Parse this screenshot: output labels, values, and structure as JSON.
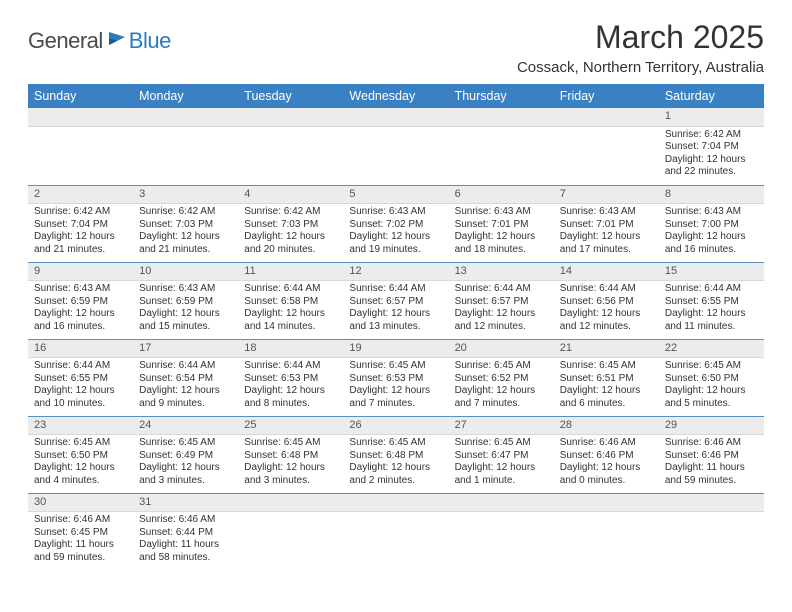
{
  "logo": {
    "general": "General",
    "blue": "Blue"
  },
  "title": "March 2025",
  "location": "Cossack, Northern Territory, Australia",
  "dayHeaders": [
    "Sunday",
    "Monday",
    "Tuesday",
    "Wednesday",
    "Thursday",
    "Friday",
    "Saturday"
  ],
  "colors": {
    "headerBg": "#3a81c4",
    "headerText": "#ffffff",
    "dayNumBg": "#ececec",
    "rowBorder": "#5a8fc2",
    "logoBlue": "#2b7bbd",
    "textDark": "#333333"
  },
  "weeks": [
    [
      {
        "n": "",
        "sunrise": "",
        "sunset": "",
        "daylight": ""
      },
      {
        "n": "",
        "sunrise": "",
        "sunset": "",
        "daylight": ""
      },
      {
        "n": "",
        "sunrise": "",
        "sunset": "",
        "daylight": ""
      },
      {
        "n": "",
        "sunrise": "",
        "sunset": "",
        "daylight": ""
      },
      {
        "n": "",
        "sunrise": "",
        "sunset": "",
        "daylight": ""
      },
      {
        "n": "",
        "sunrise": "",
        "sunset": "",
        "daylight": ""
      },
      {
        "n": "1",
        "sunrise": "Sunrise: 6:42 AM",
        "sunset": "Sunset: 7:04 PM",
        "daylight": "Daylight: 12 hours and 22 minutes."
      }
    ],
    [
      {
        "n": "2",
        "sunrise": "Sunrise: 6:42 AM",
        "sunset": "Sunset: 7:04 PM",
        "daylight": "Daylight: 12 hours and 21 minutes."
      },
      {
        "n": "3",
        "sunrise": "Sunrise: 6:42 AM",
        "sunset": "Sunset: 7:03 PM",
        "daylight": "Daylight: 12 hours and 21 minutes."
      },
      {
        "n": "4",
        "sunrise": "Sunrise: 6:42 AM",
        "sunset": "Sunset: 7:03 PM",
        "daylight": "Daylight: 12 hours and 20 minutes."
      },
      {
        "n": "5",
        "sunrise": "Sunrise: 6:43 AM",
        "sunset": "Sunset: 7:02 PM",
        "daylight": "Daylight: 12 hours and 19 minutes."
      },
      {
        "n": "6",
        "sunrise": "Sunrise: 6:43 AM",
        "sunset": "Sunset: 7:01 PM",
        "daylight": "Daylight: 12 hours and 18 minutes."
      },
      {
        "n": "7",
        "sunrise": "Sunrise: 6:43 AM",
        "sunset": "Sunset: 7:01 PM",
        "daylight": "Daylight: 12 hours and 17 minutes."
      },
      {
        "n": "8",
        "sunrise": "Sunrise: 6:43 AM",
        "sunset": "Sunset: 7:00 PM",
        "daylight": "Daylight: 12 hours and 16 minutes."
      }
    ],
    [
      {
        "n": "9",
        "sunrise": "Sunrise: 6:43 AM",
        "sunset": "Sunset: 6:59 PM",
        "daylight": "Daylight: 12 hours and 16 minutes."
      },
      {
        "n": "10",
        "sunrise": "Sunrise: 6:43 AM",
        "sunset": "Sunset: 6:59 PM",
        "daylight": "Daylight: 12 hours and 15 minutes."
      },
      {
        "n": "11",
        "sunrise": "Sunrise: 6:44 AM",
        "sunset": "Sunset: 6:58 PM",
        "daylight": "Daylight: 12 hours and 14 minutes."
      },
      {
        "n": "12",
        "sunrise": "Sunrise: 6:44 AM",
        "sunset": "Sunset: 6:57 PM",
        "daylight": "Daylight: 12 hours and 13 minutes."
      },
      {
        "n": "13",
        "sunrise": "Sunrise: 6:44 AM",
        "sunset": "Sunset: 6:57 PM",
        "daylight": "Daylight: 12 hours and 12 minutes."
      },
      {
        "n": "14",
        "sunrise": "Sunrise: 6:44 AM",
        "sunset": "Sunset: 6:56 PM",
        "daylight": "Daylight: 12 hours and 12 minutes."
      },
      {
        "n": "15",
        "sunrise": "Sunrise: 6:44 AM",
        "sunset": "Sunset: 6:55 PM",
        "daylight": "Daylight: 12 hours and 11 minutes."
      }
    ],
    [
      {
        "n": "16",
        "sunrise": "Sunrise: 6:44 AM",
        "sunset": "Sunset: 6:55 PM",
        "daylight": "Daylight: 12 hours and 10 minutes."
      },
      {
        "n": "17",
        "sunrise": "Sunrise: 6:44 AM",
        "sunset": "Sunset: 6:54 PM",
        "daylight": "Daylight: 12 hours and 9 minutes."
      },
      {
        "n": "18",
        "sunrise": "Sunrise: 6:44 AM",
        "sunset": "Sunset: 6:53 PM",
        "daylight": "Daylight: 12 hours and 8 minutes."
      },
      {
        "n": "19",
        "sunrise": "Sunrise: 6:45 AM",
        "sunset": "Sunset: 6:53 PM",
        "daylight": "Daylight: 12 hours and 7 minutes."
      },
      {
        "n": "20",
        "sunrise": "Sunrise: 6:45 AM",
        "sunset": "Sunset: 6:52 PM",
        "daylight": "Daylight: 12 hours and 7 minutes."
      },
      {
        "n": "21",
        "sunrise": "Sunrise: 6:45 AM",
        "sunset": "Sunset: 6:51 PM",
        "daylight": "Daylight: 12 hours and 6 minutes."
      },
      {
        "n": "22",
        "sunrise": "Sunrise: 6:45 AM",
        "sunset": "Sunset: 6:50 PM",
        "daylight": "Daylight: 12 hours and 5 minutes."
      }
    ],
    [
      {
        "n": "23",
        "sunrise": "Sunrise: 6:45 AM",
        "sunset": "Sunset: 6:50 PM",
        "daylight": "Daylight: 12 hours and 4 minutes."
      },
      {
        "n": "24",
        "sunrise": "Sunrise: 6:45 AM",
        "sunset": "Sunset: 6:49 PM",
        "daylight": "Daylight: 12 hours and 3 minutes."
      },
      {
        "n": "25",
        "sunrise": "Sunrise: 6:45 AM",
        "sunset": "Sunset: 6:48 PM",
        "daylight": "Daylight: 12 hours and 3 minutes."
      },
      {
        "n": "26",
        "sunrise": "Sunrise: 6:45 AM",
        "sunset": "Sunset: 6:48 PM",
        "daylight": "Daylight: 12 hours and 2 minutes."
      },
      {
        "n": "27",
        "sunrise": "Sunrise: 6:45 AM",
        "sunset": "Sunset: 6:47 PM",
        "daylight": "Daylight: 12 hours and 1 minute."
      },
      {
        "n": "28",
        "sunrise": "Sunrise: 6:46 AM",
        "sunset": "Sunset: 6:46 PM",
        "daylight": "Daylight: 12 hours and 0 minutes."
      },
      {
        "n": "29",
        "sunrise": "Sunrise: 6:46 AM",
        "sunset": "Sunset: 6:46 PM",
        "daylight": "Daylight: 11 hours and 59 minutes."
      }
    ],
    [
      {
        "n": "30",
        "sunrise": "Sunrise: 6:46 AM",
        "sunset": "Sunset: 6:45 PM",
        "daylight": "Daylight: 11 hours and 59 minutes."
      },
      {
        "n": "31",
        "sunrise": "Sunrise: 6:46 AM",
        "sunset": "Sunset: 6:44 PM",
        "daylight": "Daylight: 11 hours and 58 minutes."
      },
      {
        "n": "",
        "sunrise": "",
        "sunset": "",
        "daylight": ""
      },
      {
        "n": "",
        "sunrise": "",
        "sunset": "",
        "daylight": ""
      },
      {
        "n": "",
        "sunrise": "",
        "sunset": "",
        "daylight": ""
      },
      {
        "n": "",
        "sunrise": "",
        "sunset": "",
        "daylight": ""
      },
      {
        "n": "",
        "sunrise": "",
        "sunset": "",
        "daylight": ""
      }
    ]
  ]
}
